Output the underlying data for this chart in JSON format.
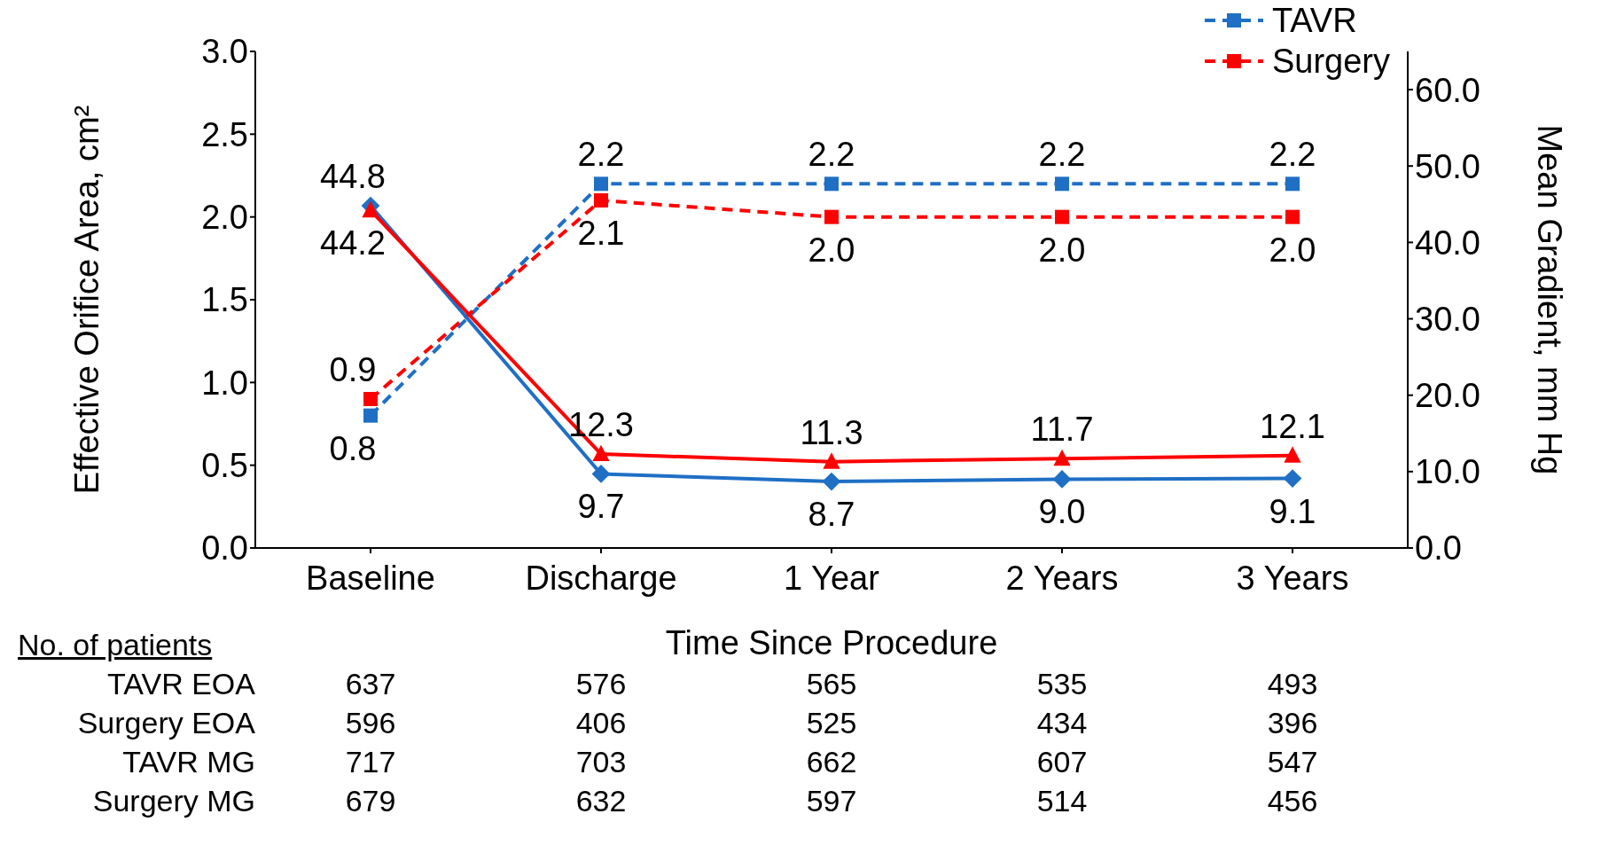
{
  "chart_data": {
    "type": "line",
    "xlabel": "Time Since Procedure",
    "ylabel": "Effective Orifice Area, cm²",
    "y2label": "Mean Gradient, mm Hg",
    "categories": [
      "Baseline",
      "Discharge",
      "1 Year",
      "2 Years",
      "3 Years"
    ],
    "series": [
      {
        "name": "TAVR",
        "color": "#1f6fc5",
        "values": [
          0.8,
          2.2,
          2.2,
          2.2,
          2.2
        ],
        "value_labels": [
          "0.8",
          "2.2",
          "2.2",
          "2.2",
          "2.2"
        ],
        "line_style": "dashed",
        "marker": "square"
      },
      {
        "name": "Surgery",
        "color": "#ff0000",
        "values": [
          0.9,
          2.1,
          2.0,
          2.0,
          2.0
        ],
        "value_labels": [
          "0.9",
          "2.1",
          "2.0",
          "2.0",
          "2.0"
        ],
        "line_style": "dashed",
        "marker": "square"
      },
      {
        "color": "#1f6fc5",
        "values": [
          44.8,
          9.7,
          8.7,
          9.0,
          9.1
        ],
        "value_labels": [
          "44.8",
          "9.7",
          "8.7",
          "9.0",
          "9.1"
        ],
        "axis": "y2",
        "line_style": "solid",
        "marker": "diamond"
      },
      {
        "color": "#ff0000",
        "values": [
          44.2,
          12.3,
          11.3,
          11.7,
          12.1
        ],
        "value_labels": [
          "44.2",
          "12.3",
          "11.3",
          "11.7",
          "12.1"
        ],
        "axis": "y2",
        "line_style": "solid",
        "marker": "triangle"
      }
    ],
    "ylim": [
      0,
      3
    ],
    "yticks": [
      {
        "value": 0,
        "label": "0.0"
      },
      {
        "value": 0.5,
        "label": "0.5"
      },
      {
        "value": 1,
        "label": "1.0"
      },
      {
        "value": 1.5,
        "label": "1.5"
      },
      {
        "value": 2,
        "label": "2.0"
      },
      {
        "value": 2.5,
        "label": "2.5"
      },
      {
        "value": 3,
        "label": "3.0"
      }
    ],
    "y2lim": [
      0,
      65
    ],
    "y2ticks": [
      {
        "value": 0,
        "label": "0.0"
      },
      {
        "value": 10,
        "label": "10.0"
      },
      {
        "value": 20,
        "label": "20.0"
      },
      {
        "value": 30,
        "label": "30.0"
      },
      {
        "value": 40,
        "label": "40.0"
      },
      {
        "value": 50,
        "label": "50.0"
      },
      {
        "value": 60,
        "label": "60.0"
      }
    ],
    "legend": "top right",
    "annotations": [
      "No. of patients",
      "TAVR EOA",
      "637",
      "576",
      "565",
      "535",
      "493",
      "Surgery EOA",
      "596",
      "406",
      "525",
      "434",
      "396",
      "TAVR MG",
      "717",
      "703",
      "662",
      "607",
      "547",
      "Surgery MG",
      "679",
      "632",
      "597",
      "514",
      "456"
    ]
  }
}
